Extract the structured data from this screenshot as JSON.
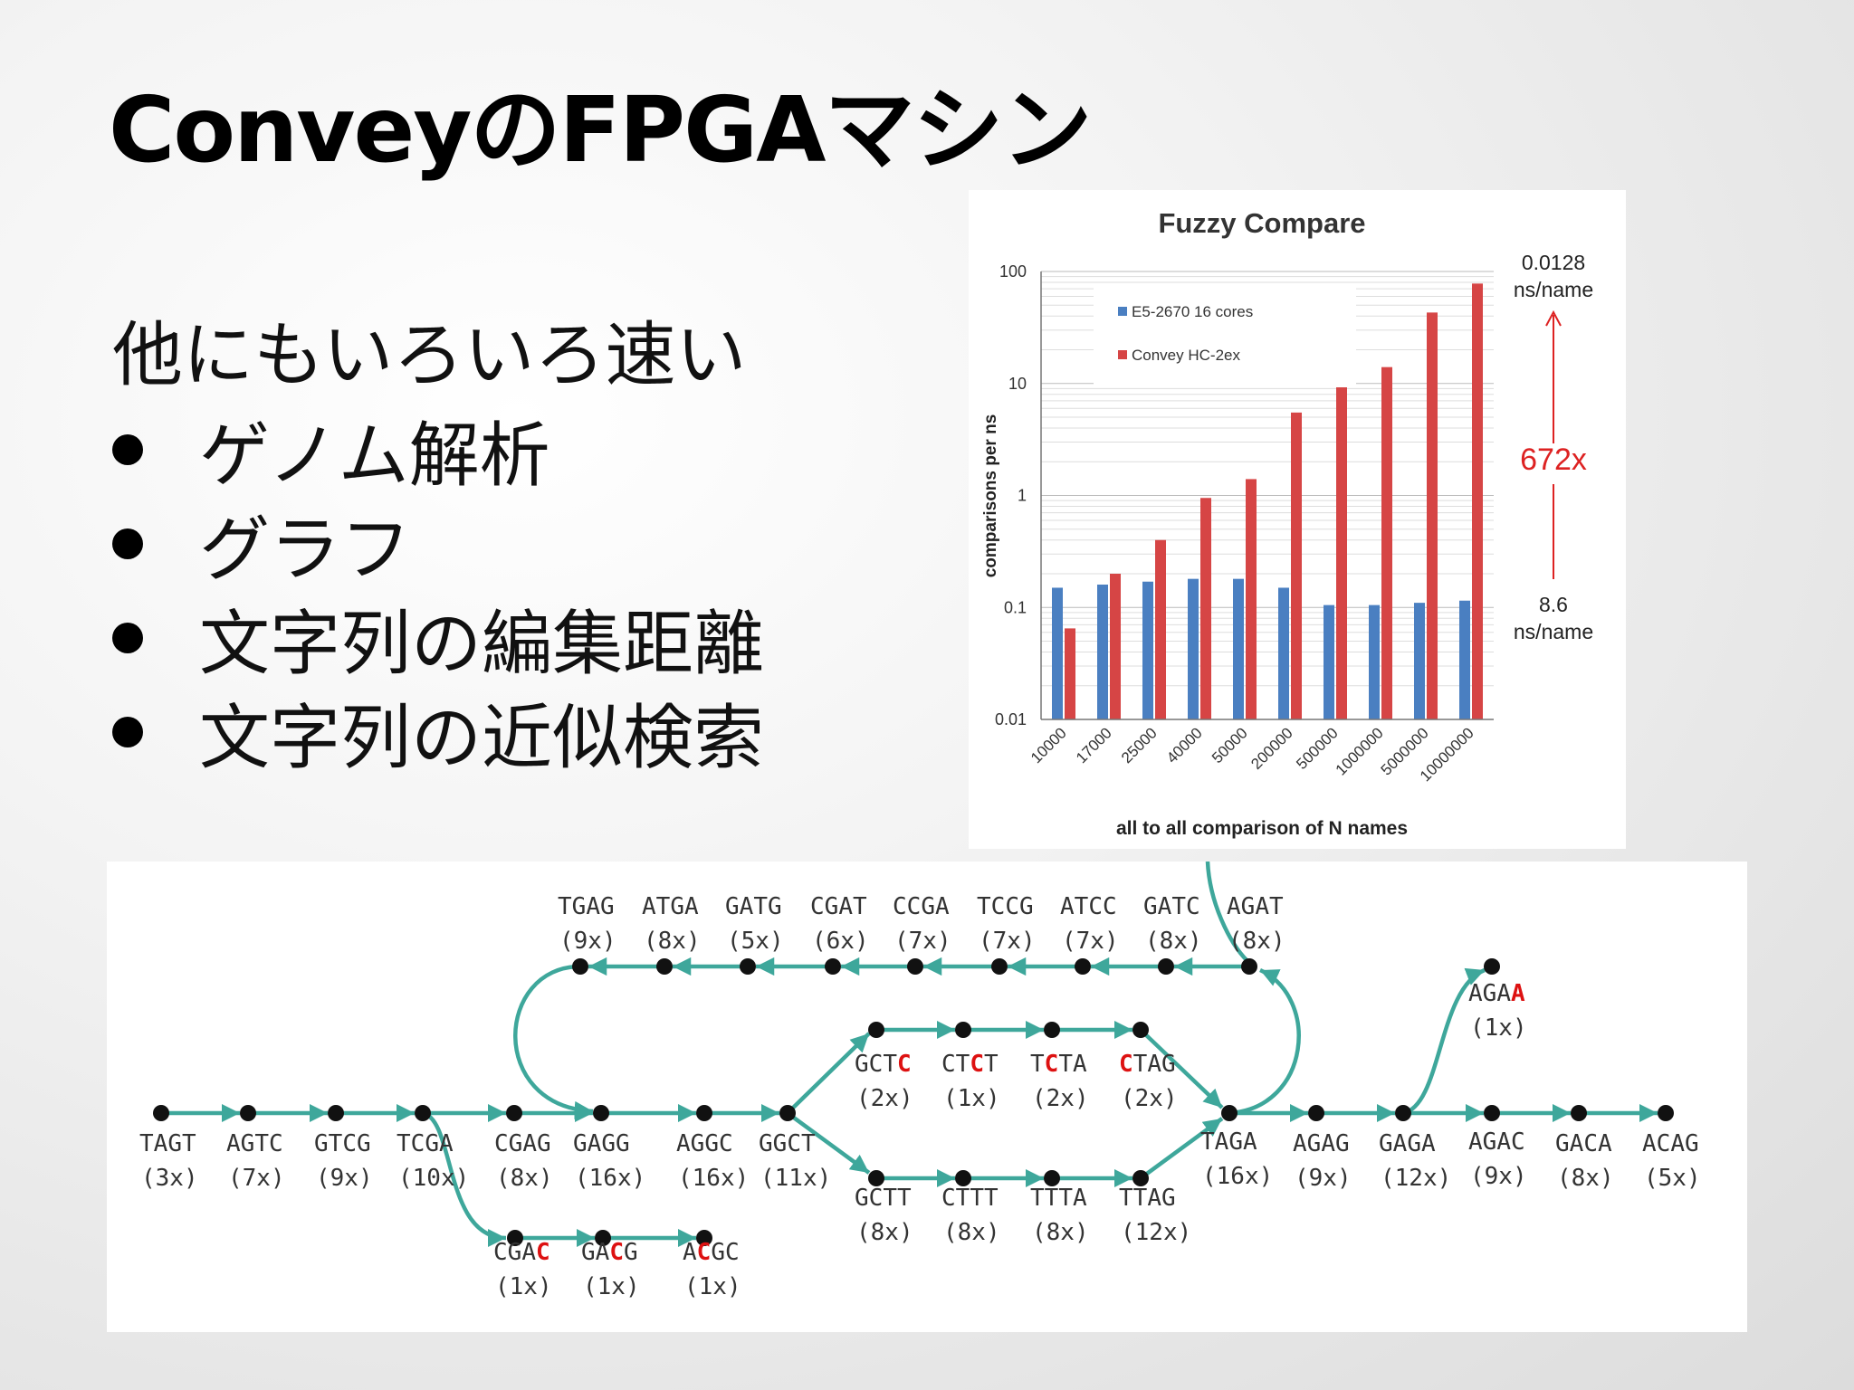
{
  "slide": {
    "title": "ConveyのFPGAマシン",
    "intro": "他にもいろいろ速い",
    "bullets": [
      "ゲノム解析",
      "グラフ",
      "文字列の編集距離",
      "文字列の近似検索"
    ]
  },
  "chart_data": {
    "type": "bar",
    "title": "Fuzzy Compare",
    "xlabel": "all to all comparison of N names",
    "ylabel": "comparisons per ns",
    "yscale": "log",
    "ylim": [
      0.01,
      100
    ],
    "yticks": [
      "100",
      "10",
      "1",
      "0.1",
      "0.01"
    ],
    "categories": [
      "10000",
      "17000",
      "25000",
      "40000",
      "50000",
      "200000",
      "500000",
      "1000000",
      "5000000",
      "10000000"
    ],
    "series": [
      {
        "name": "E5-2670 16 cores",
        "color": "#4a7fc1",
        "values": [
          0.15,
          0.16,
          0.17,
          0.18,
          0.18,
          0.15,
          0.105,
          0.105,
          0.11,
          0.115
        ]
      },
      {
        "name": "Convey HC-2ex",
        "color": "#d64545",
        "values": [
          0.065,
          0.2,
          0.4,
          0.95,
          1.4,
          5.5,
          13.5,
          14,
          43,
          78
        ]
      }
    ],
    "legend_position": "top-left",
    "grid": true,
    "annotations": {
      "top_value": "0.0128",
      "top_unit": "ns/name",
      "speedup": "672x",
      "bottom_value": "8.6",
      "bottom_unit": "ns/name"
    }
  },
  "graph": {
    "edge_color": "#3ea79b",
    "highlight_color": "#dd1111",
    "nodes": [
      {
        "label": "TAGT",
        "count": "(3x)"
      },
      {
        "label": "AGTC",
        "count": "(7x)"
      },
      {
        "label": "GTCG",
        "count": "(9x)"
      },
      {
        "label": "TCGA",
        "count": "(10x)"
      },
      {
        "label": "CGAG",
        "count": "(8x)"
      },
      {
        "label": "GAGG",
        "count": "(16x)"
      },
      {
        "label": "AGGC",
        "count": "(16x)"
      },
      {
        "label": "GGCT",
        "count": "(11x)"
      },
      {
        "label": "TAGA",
        "count": "(16x)"
      },
      {
        "label": "AGAG",
        "count": "(9x)"
      },
      {
        "label": "GAGA",
        "count": "(12x)"
      },
      {
        "label": "AGAC",
        "count": "(9x)"
      },
      {
        "label": "GACA",
        "count": "(8x)"
      },
      {
        "label": "ACAG",
        "count": "(5x)"
      },
      {
        "label": "TGAG",
        "count": "(9x)"
      },
      {
        "label": "ATGA",
        "count": "(8x)"
      },
      {
        "label": "GATG",
        "count": "(5x)"
      },
      {
        "label": "CGAT",
        "count": "(6x)"
      },
      {
        "label": "CCGA",
        "count": "(7x)"
      },
      {
        "label": "TCCG",
        "count": "(7x)"
      },
      {
        "label": "ATCC",
        "count": "(7x)"
      },
      {
        "label": "GATC",
        "count": "(8x)"
      },
      {
        "label": "AGAT",
        "count": "(8x)"
      },
      {
        "label": "GCTC",
        "count": "(2x)"
      },
      {
        "label": "CTCT",
        "count": "(1x)"
      },
      {
        "label": "TCTA",
        "count": "(2x)"
      },
      {
        "label": "CTAG",
        "count": "(2x)"
      },
      {
        "label": "GCTT",
        "count": "(8x)"
      },
      {
        "label": "CTTT",
        "count": "(8x)"
      },
      {
        "label": "TTTA",
        "count": "(8x)"
      },
      {
        "label": "TTAG",
        "count": "(12x)"
      },
      {
        "label": "CGAC",
        "count": "(1x)"
      },
      {
        "label": "GACG",
        "count": "(1x)"
      },
      {
        "label": "ACGC",
        "count": "(1x)"
      },
      {
        "label": "AGAA",
        "count": "(1x)"
      }
    ]
  }
}
